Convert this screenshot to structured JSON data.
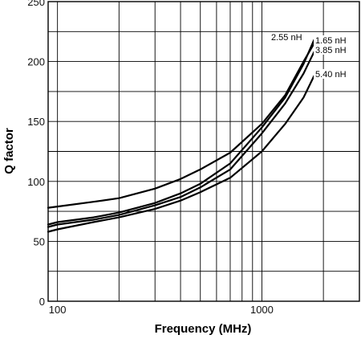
{
  "chart_data": {
    "type": "line",
    "title": "",
    "xlabel": "Frequency (MHz)",
    "ylabel": "Q factor",
    "x_scale": "log",
    "xlim": [
      90,
      3000
    ],
    "ylim": [
      0,
      250
    ],
    "grid": true,
    "legend": "inline labels at right end of curves",
    "x_ticks": [
      100,
      1000
    ],
    "x_tick_labels": [
      "100",
      "1000"
    ],
    "y_ticks": [
      0,
      50,
      100,
      150,
      200,
      250
    ],
    "y_tick_labels": [
      "0",
      "50",
      "100",
      "150",
      "200",
      "250"
    ],
    "series": [
      {
        "name": "2.55 nH",
        "x": [
          90,
          100,
          150,
          200,
          300,
          400,
          500,
          700,
          1000,
          1300,
          1600,
          1800
        ],
        "y": [
          64,
          66,
          70,
          74,
          82,
          90,
          98,
          115,
          145,
          170,
          198,
          218
        ]
      },
      {
        "name": "1.65 nH",
        "x": [
          90,
          100,
          150,
          200,
          300,
          400,
          500,
          700,
          1000,
          1300,
          1600,
          1800
        ],
        "y": [
          78,
          79,
          83,
          86,
          94,
          102,
          110,
          124,
          148,
          172,
          200,
          215
        ]
      },
      {
        "name": "3.85 nH",
        "x": [
          90,
          100,
          150,
          200,
          300,
          400,
          500,
          700,
          1000,
          1300,
          1600,
          1800
        ],
        "y": [
          62,
          64,
          68,
          72,
          80,
          87,
          95,
          110,
          140,
          165,
          190,
          208
        ]
      },
      {
        "name": "5.40 nH",
        "x": [
          90,
          100,
          150,
          200,
          300,
          400,
          500,
          700,
          1000,
          1300,
          1600,
          1800
        ],
        "y": [
          58,
          60,
          66,
          70,
          77,
          84,
          91,
          103,
          125,
          148,
          170,
          188
        ]
      }
    ]
  }
}
